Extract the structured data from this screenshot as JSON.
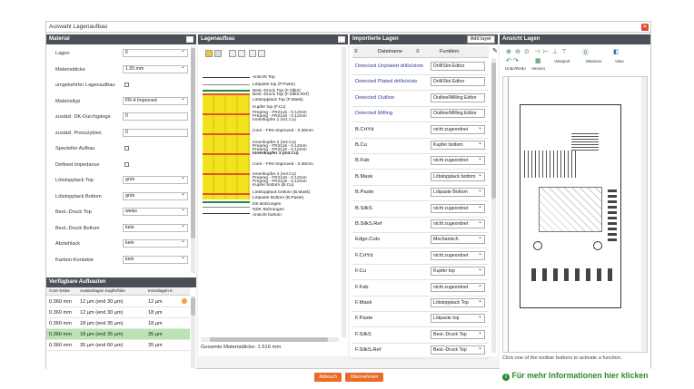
{
  "window": {
    "title": "Auswahl Lagenaufbau"
  },
  "material": {
    "header": "Material",
    "rows": [
      {
        "label": "Lagen",
        "kind": "select",
        "value": "6"
      },
      {
        "label": "Materialdicke",
        "kind": "select",
        "value": "1.55 mm"
      },
      {
        "label": "umgekehrter Lagenaufbau",
        "kind": "checkbox"
      },
      {
        "label": "Materialtyp",
        "kind": "select",
        "value": "FR-4 Improved"
      },
      {
        "label": "zusätzl. DK-Durchgänge",
        "kind": "input",
        "value": "0"
      },
      {
        "label": "zusätzl. Presszyklen",
        "kind": "input",
        "value": "0"
      },
      {
        "label": "Spezieller Aufbau",
        "kind": "checkbox"
      },
      {
        "label": "Defined Impedance",
        "kind": "checkbox"
      },
      {
        "label": "Lötstopplack Top",
        "kind": "select",
        "value": "grün"
      },
      {
        "label": "Lötstopplack Bottom",
        "kind": "select",
        "value": "grün"
      },
      {
        "label": "Best.-Druck Top",
        "kind": "select",
        "value": "weiss"
      },
      {
        "label": "Best.-Druck Bottom",
        "kind": "select",
        "value": "kein"
      },
      {
        "label": "Abziehlack",
        "kind": "select",
        "value": "kein"
      },
      {
        "label": "Karbon-Kontakte",
        "kind": "select",
        "value": "kein"
      }
    ]
  },
  "buildups": {
    "header": "Verfügbare Aufbauten",
    "columns": [
      "Core-Dicke",
      "Aussenlagen Kupferfolie",
      "Innenlagen K"
    ],
    "rows": [
      [
        "0.360 mm",
        "12 µm (end 30 µm)",
        "12 µm"
      ],
      [
        "0.360 mm",
        "12 µm (end 30 µm)",
        "18 µm"
      ],
      [
        "0.360 mm",
        "18 µm (end 35 µm)",
        "18 µm"
      ],
      [
        "0.360 mm",
        "18 µm (end 35 µm)",
        "35 µm"
      ],
      [
        "0.360 mm",
        "35 µm (end 60 µm)",
        "35 µm"
      ]
    ]
  },
  "lagenaufbau": {
    "header": "Lagenaufbau",
    "layers": [
      "Ansicht Top",
      "Lötpaste top (F.Paste)",
      "Best.-Druck Top (F.SilkS)",
      "Best.-Druck Top (F.SilkS.Ref)",
      "Lötstopplack Top (F.Mask)",
      "Kupfer top (F.Cu)",
      "Prepreg - FR2116 - 0.12mm",
      "Prepreg - FR2116 - 0.12mm",
      "Innenkupfer 1 (In1.Cu)",
      "Core - FR4-Improved - 0.36mm",
      "Innenkupfer 2 (In2.Cu)",
      "Prepreg - FR2116 - 0.12mm",
      "Prepreg - FR2116 - 0.12mm",
      "Innenkupfer 3 (In3.Cu)",
      "Core - FR4-Improved - 0.36mm",
      "Innenkupfer 4 (In4.Cu)",
      "Prepreg - FR2116 - 0.12mm",
      "Prepreg - FR2116 - 0.12mm",
      "Kupfer bottom (B.Cu)",
      "Lötstopplack bottom (B.Mask)",
      "Lötpaste Bottom (B.Paste)",
      "DK Bohrungen",
      "NDK Bohrungen",
      "Ansicht bottom"
    ],
    "total": "Gesamte Materialdicke: 1.616 mm"
  },
  "import": {
    "header": "Importierte Lagen",
    "add_layer": "Add layer",
    "col_name": "Dateiname",
    "col_func": "Funktion",
    "rows": [
      {
        "name": "Detected Unplated drills/slots",
        "func": "Drill/Slot Editor",
        "drop": false,
        "blue": true
      },
      {
        "name": "Detected Plated drills/slots",
        "func": "Drill/Slot Editor",
        "drop": false,
        "blue": true
      },
      {
        "name": "Detected Outline",
        "func": "Outline/Milling Editor",
        "drop": false,
        "blue": true
      },
      {
        "name": "Detected Milling",
        "func": "Outline/Milling Editor",
        "drop": false,
        "blue": true
      },
      {
        "name": "B.CrtYd",
        "func": "nicht zugeordnet",
        "drop": true,
        "blue": false
      },
      {
        "name": "B.Cu",
        "func": "Kupfer bottom",
        "drop": true,
        "blue": false
      },
      {
        "name": "B.Fab",
        "func": "nicht zugeordnet",
        "drop": true,
        "blue": false
      },
      {
        "name": "B.Mask",
        "func": "Lötstopplack bottom",
        "drop": true,
        "blue": false
      },
      {
        "name": "B.Paste",
        "func": "Lötpaste Bottom",
        "drop": true,
        "blue": false
      },
      {
        "name": "B.SilkS",
        "func": "nicht zugeordnet",
        "drop": true,
        "blue": false
      },
      {
        "name": "B.SilkS.Ref",
        "func": "nicht zugeordnet",
        "drop": true,
        "blue": false
      },
      {
        "name": "Edge.Cuts",
        "func": "Mechanisch",
        "drop": true,
        "blue": false
      },
      {
        "name": "F.CrtYd",
        "func": "nicht zugeordnet",
        "drop": true,
        "blue": false
      },
      {
        "name": "F.Cu",
        "func": "Kupfer top",
        "drop": true,
        "blue": false
      },
      {
        "name": "F.Fab",
        "func": "nicht zugeordnet",
        "drop": true,
        "blue": false
      },
      {
        "name": "F.Mask",
        "func": "Lötstopplack Top",
        "drop": true,
        "blue": false
      },
      {
        "name": "F.Paste",
        "func": "Lötpaste top",
        "drop": true,
        "blue": false
      },
      {
        "name": "F.SilkS",
        "func": "Best.-Druck Top",
        "drop": true,
        "blue": false
      },
      {
        "name": "F.SilkS.Ref",
        "func": "Best.-Druck Top",
        "drop": true,
        "blue": false
      }
    ]
  },
  "view": {
    "header": "Ansicht Lagen",
    "toolbar": {
      "viewport": "Viewport",
      "measure": "Measure",
      "view": "View",
      "undo": "Undo/Redo",
      "version": "Version"
    },
    "status": "Click one of the toolbar buttons to activate a function."
  },
  "footer": {
    "cancel": "Abbruch",
    "apply": "Übernehmen",
    "info": "Für mehr Informationen hier klicken"
  }
}
